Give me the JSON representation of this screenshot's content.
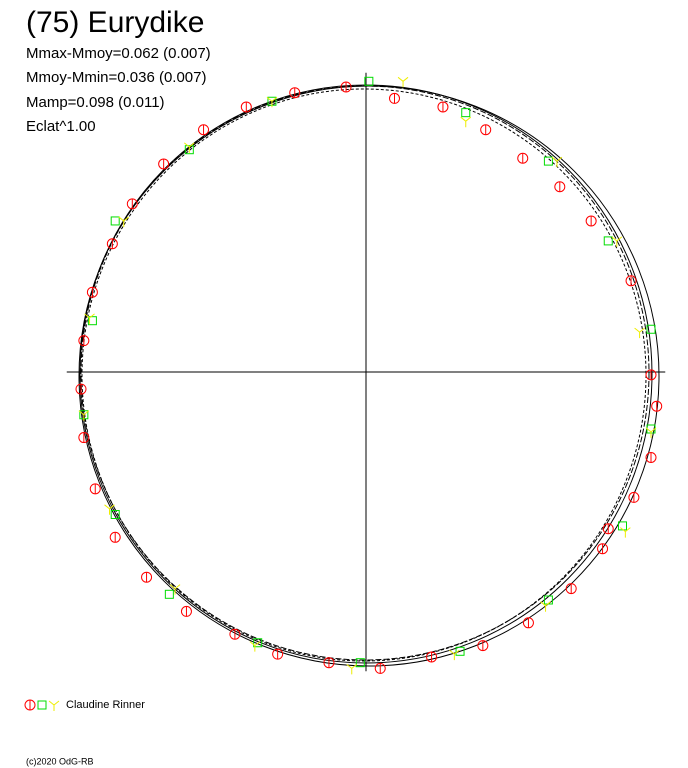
{
  "chart_data": {
    "type": "scatter",
    "title": "(75) Eurydike",
    "annotations": [
      "Mmax-Mmoy=0.062 (0.007)",
      "Mmoy-Mmin=0.036 (0.007)",
      "Mamp=0.098 (0.011)",
      "Eclat^1.00"
    ],
    "legend_label": "Claudine Rinner",
    "footer": "(c)2020 OdG-RB",
    "xlim": [
      -1.05,
      1.05
    ],
    "ylim": [
      -1.05,
      1.05
    ],
    "series": [
      {
        "color": "#ff0000",
        "marker": "circle",
        "x": [
          -0.07,
          0.1,
          0.27,
          0.42,
          0.55,
          0.68,
          0.79,
          0.93,
          1.0,
          1.02,
          1.0,
          0.94,
          0.85,
          0.83,
          0.72,
          0.57,
          0.41,
          0.23,
          0.05,
          -0.13,
          -0.31,
          -0.46,
          -0.63,
          -0.77,
          -0.88,
          -0.95,
          -0.99,
          -1.0,
          -0.99,
          -0.96,
          -0.89,
          -0.82,
          -0.71,
          -0.57,
          -0.42,
          -0.25
        ],
        "values": [
          1.0,
          0.96,
          0.93,
          0.85,
          0.75,
          0.65,
          0.53,
          0.32,
          -0.01,
          -0.12,
          -0.3,
          -0.44,
          -0.55,
          -0.62,
          -0.76,
          -0.88,
          -0.96,
          -1.0,
          -1.04,
          -1.02,
          -0.99,
          -0.92,
          -0.84,
          -0.72,
          -0.58,
          -0.41,
          -0.23,
          -0.06,
          0.11,
          0.28,
          0.45,
          0.59,
          0.73,
          0.85,
          0.93,
          0.98
        ]
      },
      {
        "color": "#00dd00",
        "marker": "square",
        "x": [
          0.01,
          0.35,
          0.64,
          0.85,
          1.0,
          1.0,
          0.9,
          0.64,
          0.33,
          -0.02,
          -0.38,
          -0.69,
          -0.88,
          -0.99,
          -0.96,
          -0.88,
          -0.62,
          -0.33
        ],
        "values": [
          1.02,
          0.91,
          0.74,
          0.46,
          0.15,
          -0.2,
          -0.54,
          -0.8,
          -0.98,
          -1.02,
          -0.95,
          -0.78,
          -0.5,
          -0.15,
          0.18,
          0.53,
          0.78,
          0.95
        ]
      },
      {
        "color": "#eeee00",
        "marker": "star",
        "x": [
          0.13,
          0.35,
          0.67,
          0.88,
          0.96,
          1.0,
          0.91,
          0.63,
          0.31,
          -0.05,
          -0.39,
          -0.67,
          -0.9,
          -0.99,
          -0.97,
          -0.85,
          -0.62,
          -0.33
        ],
        "values": [
          1.02,
          0.88,
          0.74,
          0.46,
          0.14,
          -0.21,
          -0.56,
          -0.82,
          -0.99,
          -1.04,
          -0.96,
          -0.76,
          -0.48,
          -0.15,
          0.19,
          0.53,
          0.79,
          0.95
        ]
      }
    ]
  }
}
